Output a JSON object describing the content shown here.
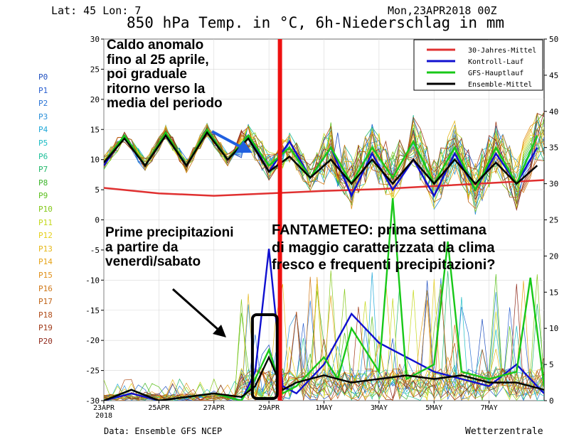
{
  "header": {
    "location": "Lat: 45 Lon: 7",
    "run_date": "Mon,23APR2018 00Z",
    "title": "850 hPa Temp. in °C, 6h-Niederschlag in mm"
  },
  "footer": {
    "data_source": "Data: Ensemble GFS NCEP",
    "provider": "Wetterzentrale"
  },
  "members": [
    "P0",
    "P1",
    "P2",
    "P3",
    "P4",
    "P5",
    "P6",
    "P7",
    "P8",
    "P9",
    "P10",
    "P11",
    "P12",
    "P13",
    "P14",
    "P15",
    "P16",
    "P17",
    "P18",
    "P19",
    "P20"
  ],
  "member_colors": [
    "#1f4fbf",
    "#2a5fd0",
    "#2a74d6",
    "#2a8fd8",
    "#1fa8d8",
    "#1cbcc4",
    "#1ec09a",
    "#22b86a",
    "#3cb42a",
    "#5cc01e",
    "#84c81a",
    "#c4d81a",
    "#e6d01a",
    "#e6b81a",
    "#e6a41a",
    "#e09018",
    "#d07818",
    "#c06418",
    "#b04c18",
    "#a03a18",
    "#902a1c"
  ],
  "annotations": {
    "temp_note": "Caldo anomalo\nfino al 25 aprile,\npoi graduale\nritorno verso la\nmedia del periodo",
    "precip_note": "Prime precipitazioni\na partire da\nvenerdì/sabato",
    "outlook_note": "FANTAMETEO: prima settimana\ndi maggio caratterizzata da clima\nfresco e frequenti precipitazioni?"
  },
  "chart_data": {
    "type": "line",
    "x_ticks": [
      "23APR",
      "25APR",
      "27APR",
      "29APR",
      "1MAY",
      "3MAY",
      "5MAY",
      "7MAY"
    ],
    "x_first_tick_year": "2018",
    "x_range_days": [
      0,
      16
    ],
    "y_left": {
      "range": [
        -30,
        30
      ],
      "ticks": [
        -30,
        -25,
        -20,
        -15,
        -10,
        -5,
        0,
        5,
        10,
        15,
        20,
        25,
        30
      ],
      "unit": "°C"
    },
    "y_right": {
      "range": [
        0,
        50
      ],
      "ticks": [
        0,
        5,
        10,
        15,
        20,
        25,
        30,
        35,
        40,
        45,
        50
      ],
      "unit": "mm"
    },
    "temperature_series": [
      {
        "name": "30-Jahres-Mittel",
        "color": "#e03030",
        "x_days": [
          0,
          2,
          4,
          6,
          8,
          10,
          12,
          14,
          16
        ],
        "values": [
          5.3,
          4.4,
          4.0,
          4.4,
          4.8,
          5.1,
          5.6,
          6.1,
          6.6
        ]
      },
      {
        "name": "Kontroll-Lauf",
        "color": "#1010d0",
        "x_days": [
          0,
          0.75,
          1.5,
          2.25,
          3,
          3.75,
          4.5,
          5.25,
          6,
          6.75,
          7.5,
          8.25,
          9,
          9.75,
          10.5,
          11.25,
          12,
          12.75,
          13.5,
          14.25,
          15,
          15.75
        ],
        "values": [
          9,
          14,
          9,
          14,
          9,
          15,
          10,
          14,
          8,
          13,
          7,
          12,
          4,
          11,
          5,
          10,
          4,
          11,
          5,
          11,
          6,
          12
        ]
      },
      {
        "name": "GFS-Hauptlauf",
        "color": "#18c818",
        "x_days": [
          0,
          0.75,
          1.5,
          2.25,
          3,
          3.75,
          4.5,
          5.25,
          6,
          6.75,
          7.5,
          8.25,
          9,
          9.75,
          10.5,
          11.25,
          12,
          12.75,
          13.5,
          14.25,
          15,
          15.75
        ],
        "values": [
          9.5,
          14,
          9,
          14.5,
          9,
          15,
          10,
          14,
          9,
          12,
          7,
          12,
          6,
          12,
          7,
          13,
          6,
          12,
          5,
          12,
          6,
          14
        ]
      },
      {
        "name": "Ensemble-Mittel",
        "color": "#000000",
        "x_days": [
          0,
          0.75,
          1.5,
          2.25,
          3,
          3.75,
          4.5,
          5.25,
          6,
          6.75,
          7.5,
          8.25,
          9,
          9.75,
          10.5,
          11.25,
          12,
          12.75,
          13.5,
          14.25,
          15,
          15.75
        ],
        "values": [
          9.5,
          13.5,
          9,
          14,
          9,
          14.5,
          10,
          13.5,
          8,
          10.5,
          7,
          10,
          6,
          10,
          6,
          10,
          6,
          10,
          6,
          9.5,
          6,
          9
        ]
      }
    ],
    "precipitation_series": [
      {
        "name": "Kontroll-Lauf",
        "color": "#1010d0",
        "x_days": [
          0,
          1,
          2,
          3,
          4,
          5,
          5.5,
          6,
          6.5,
          7,
          8,
          9,
          10,
          11,
          12,
          13,
          14,
          15,
          16
        ],
        "values": [
          0,
          1,
          0,
          0.5,
          1,
          0,
          4,
          21,
          2,
          1,
          5,
          12,
          8,
          6,
          4,
          3,
          2,
          5,
          1
        ]
      },
      {
        "name": "GFS-Hauptlauf",
        "color": "#18c818",
        "x_days": [
          0,
          1,
          2,
          3,
          4,
          5,
          5.5,
          6,
          6.5,
          7,
          8,
          8.5,
          9,
          10,
          10.5,
          11,
          12,
          12.5,
          13,
          14,
          15,
          15.5,
          16
        ],
        "values": [
          0,
          1.5,
          0,
          0.5,
          1,
          0,
          3,
          7,
          1,
          2,
          6,
          3,
          10,
          4,
          28,
          3,
          5,
          22,
          4,
          3,
          4,
          17,
          2
        ]
      },
      {
        "name": "Ensemble-Mittel",
        "color": "#000000",
        "x_days": [
          0,
          1,
          2,
          3,
          4,
          5,
          5.5,
          6,
          6.5,
          7,
          8,
          9,
          10,
          11,
          12,
          13,
          14,
          15,
          16
        ],
        "values": [
          0,
          1.5,
          0,
          0.5,
          1,
          0.5,
          2,
          6,
          1.5,
          2.5,
          3.5,
          2.5,
          3,
          3.5,
          3,
          3.5,
          2.5,
          2.5,
          1.5
        ]
      }
    ],
    "legend_position": "top-right",
    "annotation_box_x_days": [
      5.4,
      6.3
    ],
    "vertical_marker_x_days": 6.4
  }
}
